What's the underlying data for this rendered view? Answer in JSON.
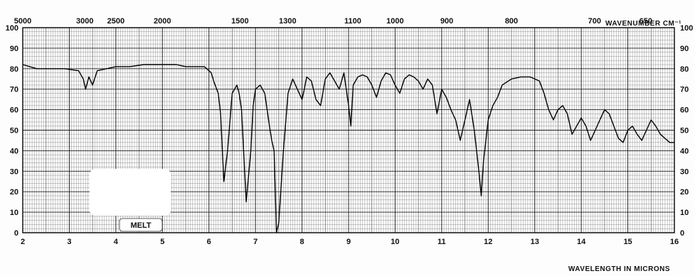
{
  "chart_data": {
    "type": "line",
    "title": "",
    "xlabel": "WAVELENGTH IN MICRONS",
    "x2label": "WAVENUMBER CM⁻¹",
    "ylabel": "",
    "xlim": [
      2,
      16
    ],
    "ylim": [
      0,
      100
    ],
    "grid": true,
    "x_ticks": [
      "2",
      "3",
      "4",
      "5",
      "6",
      "7",
      "8",
      "9",
      "10",
      "11",
      "12",
      "13",
      "14",
      "15",
      "16"
    ],
    "x_tick_values": [
      2,
      3,
      4,
      5,
      6,
      7,
      8,
      9,
      10,
      11,
      12,
      13,
      14,
      15,
      16
    ],
    "y_ticks_left": [
      "100",
      "90",
      "80",
      "70",
      "60",
      "50",
      "40",
      "30",
      "20",
      "10",
      "0"
    ],
    "y_ticks_right": [
      "100",
      "90",
      "80",
      "70",
      "60",
      "50",
      "40",
      "30",
      "20",
      "10",
      "0"
    ],
    "y_tick_values": [
      100,
      90,
      80,
      70,
      60,
      50,
      40,
      30,
      20,
      10,
      0
    ],
    "wavenumber_ticks": [
      {
        "label": "5000",
        "micron": 2.0
      },
      {
        "label": "3000",
        "micron": 3.333
      },
      {
        "label": "2500",
        "micron": 4.0
      },
      {
        "label": "2000",
        "micron": 5.0
      },
      {
        "label": "1500",
        "micron": 6.667
      },
      {
        "label": "1300",
        "micron": 7.692
      },
      {
        "label": "1100",
        "micron": 9.091
      },
      {
        "label": "1000",
        "micron": 10.0
      },
      {
        "label": "900",
        "micron": 11.111
      },
      {
        "label": "800",
        "micron": 12.5
      },
      {
        "label": "700",
        "micron": 14.286
      },
      {
        "label": "650",
        "micron": 15.385
      }
    ],
    "annotation": "MELT",
    "series": [
      {
        "x": [
          2.0,
          2.3,
          2.6,
          2.9,
          3.2,
          3.3,
          3.35,
          3.42,
          3.5,
          3.6,
          3.8,
          4.0,
          4.3,
          4.6,
          5.0,
          5.3,
          5.5,
          5.7,
          5.9,
          6.05,
          6.1,
          6.2,
          6.25,
          6.32,
          6.4,
          6.5,
          6.6,
          6.65,
          6.7,
          6.8,
          6.9,
          6.95,
          7.0,
          7.1,
          7.2,
          7.25,
          7.3,
          7.35,
          7.4,
          7.45,
          7.5,
          7.6,
          7.7,
          7.8,
          7.9,
          8.0,
          8.05,
          8.1,
          8.2,
          8.3,
          8.4,
          8.5,
          8.6,
          8.7,
          8.8,
          8.9,
          9.0,
          9.05,
          9.1,
          9.2,
          9.3,
          9.4,
          9.5,
          9.6,
          9.7,
          9.8,
          9.9,
          10.0,
          10.1,
          10.2,
          10.3,
          10.4,
          10.5,
          10.6,
          10.7,
          10.8,
          10.9,
          11.0,
          11.1,
          11.2,
          11.3,
          11.4,
          11.5,
          11.6,
          11.7,
          11.8,
          11.85,
          11.9,
          12.0,
          12.1,
          12.2,
          12.3,
          12.5,
          12.7,
          12.9,
          13.1,
          13.2,
          13.3,
          13.4,
          13.5,
          13.6,
          13.7,
          13.8,
          13.9,
          14.0,
          14.1,
          14.2,
          14.3,
          14.4,
          14.5,
          14.6,
          14.7,
          14.8,
          14.9,
          15.0,
          15.1,
          15.2,
          15.3,
          15.4,
          15.5,
          15.6,
          15.7,
          15.8,
          15.9,
          16.0
        ],
        "y": [
          82,
          80,
          80,
          80,
          79,
          75,
          70,
          76,
          72,
          79,
          80,
          81,
          81,
          82,
          82,
          82,
          81,
          81,
          81,
          78,
          74,
          68,
          58,
          25,
          40,
          68,
          72,
          68,
          60,
          15,
          40,
          62,
          70,
          72,
          68,
          60,
          52,
          45,
          40,
          0,
          5,
          40,
          68,
          75,
          70,
          65,
          70,
          76,
          74,
          65,
          62,
          75,
          78,
          74,
          70,
          78,
          62,
          52,
          72,
          76,
          77,
          76,
          72,
          66,
          74,
          78,
          77,
          72,
          68,
          75,
          77,
          76,
          74,
          70,
          75,
          72,
          58,
          70,
          66,
          60,
          55,
          45,
          55,
          65,
          50,
          30,
          18,
          35,
          55,
          62,
          66,
          72,
          75,
          76,
          76,
          74,
          68,
          60,
          55,
          60,
          62,
          58,
          48,
          52,
          56,
          52,
          45,
          50,
          55,
          60,
          58,
          52,
          46,
          44,
          50,
          52,
          48,
          45,
          50,
          55,
          52,
          48,
          46,
          44,
          44
        ]
      }
    ]
  }
}
